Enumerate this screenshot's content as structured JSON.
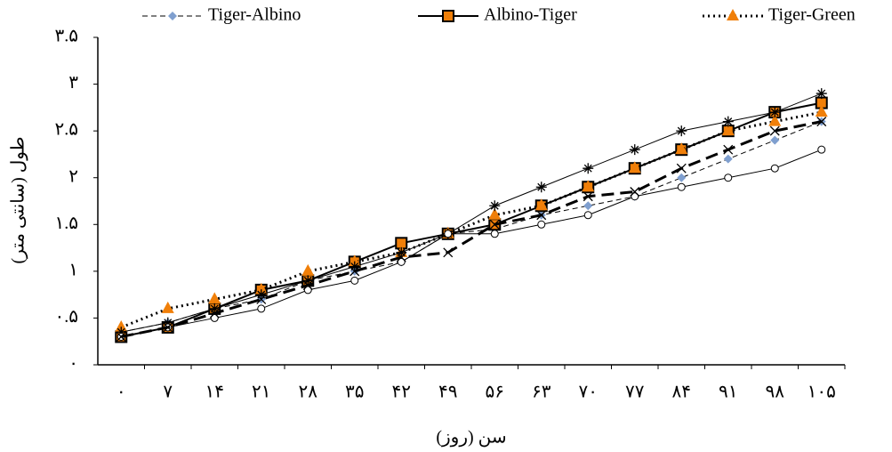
{
  "chart_data": {
    "type": "line",
    "x_label": "سن (روز)",
    "y_label": "طول (سانتی متر)",
    "categories": [
      "۰",
      "۷",
      "۱۴",
      "۲۱",
      "۲۸",
      "۳۵",
      "۴۲",
      "۴۹",
      "۵۶",
      "۶۳",
      "۷۰",
      "۷۷",
      "۸۴",
      "۹۱",
      "۹۸",
      "۱۰۵"
    ],
    "ylim": [
      0,
      3.5
    ],
    "yticks": [
      {
        "value": 0,
        "label": "۰"
      },
      {
        "value": 0.5,
        "label": "۰.۵"
      },
      {
        "value": 1,
        "label": "۱"
      },
      {
        "value": 1.5,
        "label": "۱.۵"
      },
      {
        "value": 2,
        "label": "۲"
      },
      {
        "value": 2.5,
        "label": "۲.۵"
      },
      {
        "value": 3,
        "label": "۳"
      },
      {
        "value": 3.5,
        "label": "۳.۵"
      }
    ],
    "grid": false,
    "legend": "top",
    "series": [
      {
        "name": "Tiger-Albino",
        "color": "#000000",
        "marker_color": "#7f9fcf",
        "marker": "diamond",
        "dash": "6,4",
        "width": 1,
        "values": [
          0.35,
          0.45,
          0.6,
          0.7,
          0.9,
          1.0,
          1.1,
          1.4,
          1.45,
          1.6,
          1.7,
          1.8,
          2.0,
          2.2,
          2.4,
          2.6
        ]
      },
      {
        "name": "Albino-Tiger",
        "color": "#000000",
        "marker_color": "#f07f09",
        "marker": "square",
        "dash": "",
        "width": 2,
        "values": [
          0.3,
          0.4,
          0.6,
          0.8,
          0.9,
          1.1,
          1.3,
          1.4,
          1.5,
          1.7,
          1.9,
          2.1,
          2.3,
          2.5,
          2.7,
          2.8
        ]
      },
      {
        "name": "Tiger-Green",
        "color": "#000000",
        "marker_color": "#f07f09",
        "marker": "triangle",
        "dash": "2,4",
        "width": 3,
        "values": [
          0.4,
          0.6,
          0.7,
          0.8,
          1.0,
          1.1,
          1.2,
          1.4,
          1.6,
          1.7,
          1.9,
          2.1,
          2.3,
          2.5,
          2.6,
          2.7
        ]
      },
      {
        "color": "#000000",
        "marker_color": "#000000",
        "marker": "asterisk",
        "dash": "",
        "width": 1,
        "values": [
          0.35,
          0.45,
          0.6,
          0.75,
          0.9,
          1.05,
          1.2,
          1.4,
          1.7,
          1.9,
          2.1,
          2.3,
          2.5,
          2.6,
          2.7,
          2.9
        ]
      },
      {
        "color": "#000000",
        "marker_color": "#000000",
        "marker": "circle",
        "dash": "",
        "width": 1,
        "values": [
          0.3,
          0.4,
          0.5,
          0.6,
          0.8,
          0.9,
          1.1,
          1.4,
          1.4,
          1.5,
          1.6,
          1.8,
          1.9,
          2.0,
          2.1,
          2.3
        ]
      },
      {
        "color": "#000000",
        "marker_color": "#000000",
        "marker": "x",
        "dash": "14,7",
        "width": 3,
        "values": [
          0.3,
          0.4,
          0.55,
          0.7,
          0.85,
          1.0,
          1.15,
          1.2,
          1.5,
          1.6,
          1.8,
          1.85,
          2.1,
          2.3,
          2.5,
          2.6
        ]
      }
    ]
  }
}
